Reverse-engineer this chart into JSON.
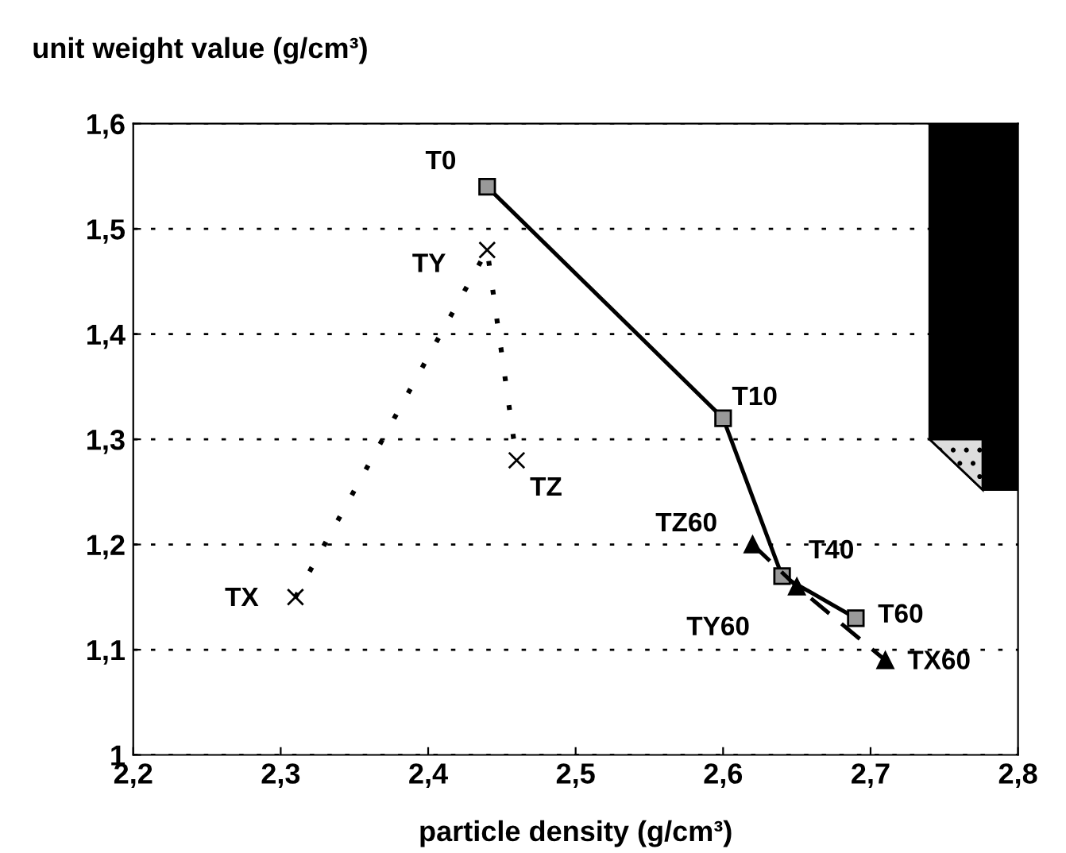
{
  "chart_data": {
    "type": "line",
    "xlabel": "particle density (g/cm³)",
    "ylabel": "unit weight value (g/cm³)",
    "xlim": [
      2.2,
      2.8
    ],
    "ylim": [
      1.0,
      1.6
    ],
    "xticks": [
      {
        "value": 2.2,
        "label": "2,2"
      },
      {
        "value": 2.3,
        "label": "2,3"
      },
      {
        "value": 2.4,
        "label": "2,4"
      },
      {
        "value": 2.5,
        "label": "2,5"
      },
      {
        "value": 2.6,
        "label": "2,6"
      },
      {
        "value": 2.7,
        "label": "2,7"
      },
      {
        "value": 2.8,
        "label": "2,8"
      }
    ],
    "yticks": [
      {
        "value": 1.0,
        "label": "1"
      },
      {
        "value": 1.1,
        "label": "1,1"
      },
      {
        "value": 1.2,
        "label": "1,2"
      },
      {
        "value": 1.3,
        "label": "1,3"
      },
      {
        "value": 1.4,
        "label": "1,4"
      },
      {
        "value": 1.5,
        "label": "1,5"
      },
      {
        "value": 1.6,
        "label": "1,6"
      }
    ],
    "grid": "y",
    "series": [
      {
        "color": "#000000",
        "marker": "square",
        "line_style": "solid",
        "x": [
          2.44,
          2.6,
          2.64,
          2.69
        ],
        "values": [
          1.54,
          1.32,
          1.17,
          1.13
        ]
      },
      {
        "color": "#000000",
        "marker": "cross",
        "line_style": "dotted",
        "x": [
          2.31,
          2.44,
          2.46
        ],
        "values": [
          1.15,
          1.48,
          1.28
        ]
      },
      {
        "color": "#000000",
        "marker": "triangle",
        "line_style": "dashed",
        "x": [
          2.62,
          2.65,
          2.71
        ],
        "values": [
          1.2,
          1.16,
          1.09
        ]
      }
    ],
    "annotations": [
      {
        "text": "T0",
        "x": 2.44,
        "y": 1.54
      },
      {
        "text": "T10",
        "x": 2.6,
        "y": 1.32
      },
      {
        "text": "T40",
        "x": 2.64,
        "y": 1.17
      },
      {
        "text": "T60",
        "x": 2.69,
        "y": 1.13
      },
      {
        "text": "TX",
        "x": 2.31,
        "y": 1.15
      },
      {
        "text": "TY",
        "x": 2.44,
        "y": 1.48
      },
      {
        "text": "TZ",
        "x": 2.46,
        "y": 1.28
      },
      {
        "text": "TZ60",
        "x": 2.62,
        "y": 1.2
      },
      {
        "text": "TY60",
        "x": 2.65,
        "y": 1.16
      },
      {
        "text": "TX60",
        "x": 2.71,
        "y": 1.09
      }
    ]
  }
}
